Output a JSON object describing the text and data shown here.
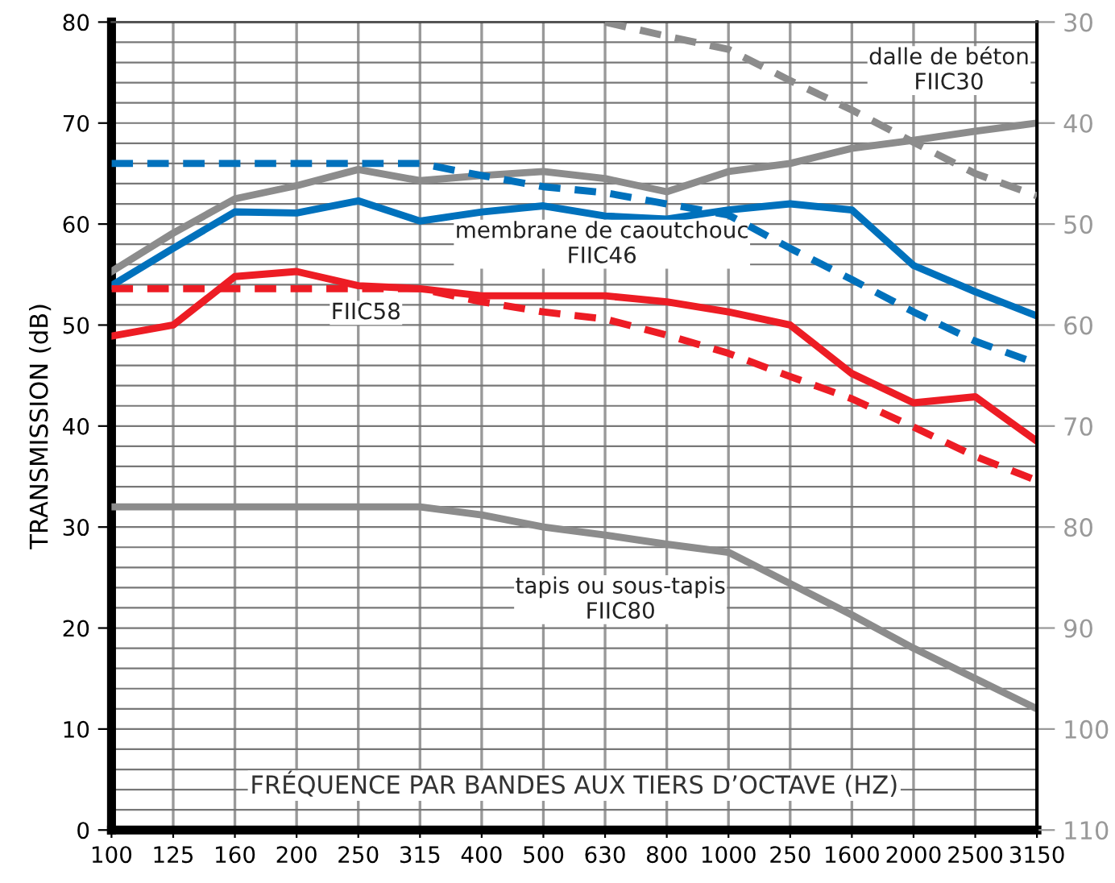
{
  "chart_data": {
    "type": "line",
    "xlabel": "FRÉQUENCE PAR BANDES AUX TIERS D’OCTAVE (HZ)",
    "ylabel": "TRANSMISSION (dB)",
    "categories": [
      "100",
      "125",
      "160",
      "200",
      "250",
      "315",
      "400",
      "500",
      "630",
      "800",
      "1000",
      "250",
      "1600",
      "2000",
      "2500",
      "3150"
    ],
    "series": [
      {
        "color": "#8c8c8c",
        "values": [
          55.3,
          59.1,
          62.5,
          63.8,
          65.4,
          64.3,
          64.8,
          65.2,
          64.5,
          63.2,
          65.2,
          66,
          67.5,
          68.3,
          69.2,
          70
        ]
      },
      {
        "color": "#0071bc",
        "values": [
          53.9,
          57.6,
          61.2,
          61.1,
          62.3,
          60.3,
          61.2,
          61.8,
          60.8,
          60.5,
          61.4,
          62,
          61.4,
          55.9,
          53.3,
          50.9
        ]
      },
      {
        "color": "#ed1c24",
        "values": [
          48.9,
          50,
          54.8,
          55.3,
          53.9,
          53.6,
          52.9,
          52.9,
          52.9,
          52.3,
          51.3,
          50,
          45.2,
          42.3,
          42.9,
          38.5
        ]
      },
      {
        "color": "#8c8c8c",
        "values": [
          32,
          32,
          32,
          32,
          32,
          32,
          31.2,
          30,
          29.2,
          28.3,
          27.5,
          24.4,
          21.3,
          18,
          15,
          12
        ]
      },
      {
        "color": "#8c8c8c",
        "axis": "y2",
        "line_style": "dashed",
        "values": [
          null,
          null,
          null,
          null,
          null,
          null,
          null,
          null,
          30,
          31.4,
          32.7,
          35.8,
          38.7,
          41.9,
          45,
          47.2
        ]
      },
      {
        "color": "#0071bc",
        "axis": "y2",
        "line_style": "dashed",
        "values": [
          44,
          44,
          44,
          44,
          44,
          44,
          45.2,
          46.3,
          46.9,
          48,
          49.1,
          52.4,
          55.5,
          58.7,
          61.6,
          63.8
        ]
      },
      {
        "color": "#ed1c24",
        "axis": "y2",
        "line_style": "dashed",
        "values": [
          56.4,
          56.4,
          56.4,
          56.4,
          56.4,
          56.4,
          57.7,
          58.7,
          59.4,
          61,
          62.8,
          65.1,
          67.3,
          70.1,
          73,
          75.4
        ]
      }
    ],
    "ylim": [
      0,
      80
    ],
    "yticks": [
      0,
      {
        "value": 2,
        "label": null
      },
      {
        "value": 4,
        "label": null
      },
      {
        "value": 6,
        "label": null
      },
      {
        "value": 8,
        "label": null
      },
      10,
      {
        "value": 12,
        "label": null
      },
      {
        "value": 14,
        "label": null
      },
      {
        "value": 16,
        "label": null
      },
      {
        "value": 18,
        "label": null
      },
      20,
      {
        "value": 22,
        "label": null
      },
      {
        "value": 24,
        "label": null
      },
      {
        "value": 26,
        "label": null
      },
      {
        "value": 28,
        "label": null
      },
      30,
      {
        "value": 32,
        "label": null
      },
      {
        "value": 34,
        "label": null
      },
      {
        "value": 36,
        "label": null
      },
      {
        "value": 38,
        "label": null
      },
      40,
      {
        "value": 42,
        "label": null
      },
      {
        "value": 44,
        "label": null
      },
      {
        "value": 46,
        "label": null
      },
      {
        "value": 48,
        "label": null
      },
      50,
      {
        "value": 52,
        "label": null
      },
      {
        "value": 54,
        "label": null
      },
      {
        "value": 56,
        "label": null
      },
      {
        "value": 58,
        "label": null
      },
      60,
      {
        "value": 62,
        "label": null
      },
      {
        "value": 64,
        "label": null
      },
      {
        "value": 66,
        "label": null
      },
      {
        "value": 68,
        "label": null
      },
      70,
      {
        "value": 72,
        "label": null
      },
      {
        "value": 74,
        "label": null
      },
      {
        "value": 76,
        "label": null
      },
      {
        "value": 78,
        "label": null
      },
      80
    ],
    "y2lim": [
      110,
      30
    ],
    "y2ticks": [
      30,
      40,
      50,
      60,
      70,
      80,
      90,
      100,
      110
    ],
    "grid": true,
    "legend": false,
    "marker": "none",
    "line_style": "solid",
    "annotations": [
      "dalle de béton\nFIIC30",
      "membrane de caoutchouc\nFIIC46",
      "FIIC58",
      "tapis ou sous-tapis\nFIIC80"
    ]
  }
}
